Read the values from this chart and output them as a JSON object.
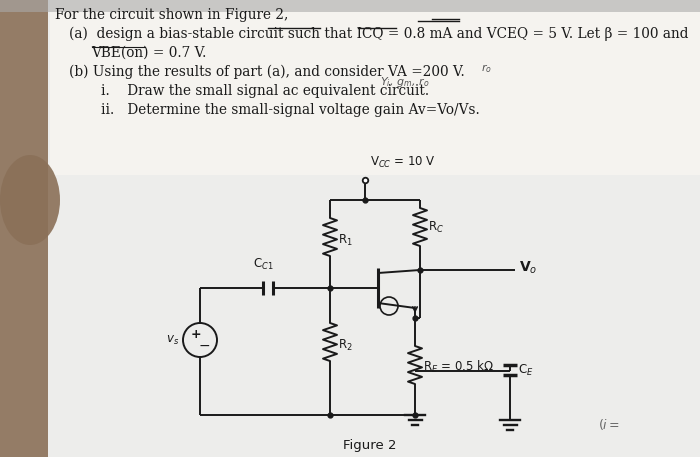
{
  "background_color": "#ededeb",
  "page_bg": "#f2f0ec",
  "fig_label": "Figure 2",
  "vcc_label": "V$_{CC}$ = 10 V",
  "r1_label": "R$_1$",
  "rc_label": "R$_C$",
  "r2_label": "R$_2$",
  "re_label": "R$_E$ = 0.5 kΩ",
  "ce_label": "C$_E$",
  "cc1_label": "C$_{C1}$",
  "vs_label": "v$_s$",
  "vo_label": "V$_o$",
  "hand_color": "#7a6248",
  "wire_color": "#1a1a1a",
  "text_color": "#1a1a1a"
}
